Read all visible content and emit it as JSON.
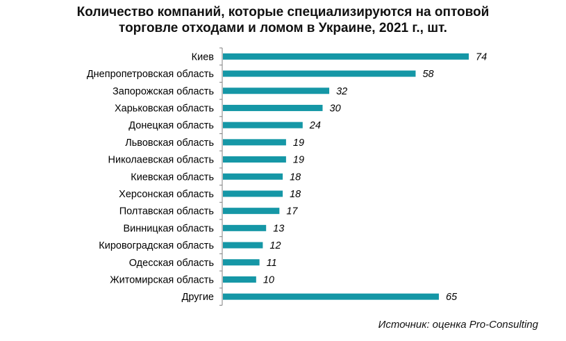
{
  "header": {
    "title_line1": "Количество компаний, которые специализируются на оптовой",
    "title_line2": "торговле отходами и ломом в Украине, 2021 г., шт."
  },
  "source_text": "Источник:  оценка  Pro-Consulting",
  "colors": {
    "bar": "#1597A6",
    "axis": "#808080"
  },
  "chart_data": {
    "type": "bar",
    "orientation": "horizontal",
    "title": "Количество компаний, которые специализируются на оптовой торговле отходами и ломом в Украине, 2021 г., шт.",
    "categories": [
      "Киев",
      "Днепропетровская область",
      "Запорожская область",
      "Харьковская область",
      "Донецкая область",
      "Львовская область",
      "Николаевская область",
      "Киевская область",
      "Херсонская область",
      "Полтавская область",
      "Винницкая область",
      "Кировоградская область",
      "Одесская область",
      "Житомирская область",
      "Другие"
    ],
    "values": [
      74,
      58,
      32,
      30,
      24,
      19,
      19,
      18,
      18,
      17,
      13,
      12,
      11,
      10,
      65
    ],
    "xlim": [
      0,
      80
    ],
    "grid": false,
    "legend": "none"
  }
}
